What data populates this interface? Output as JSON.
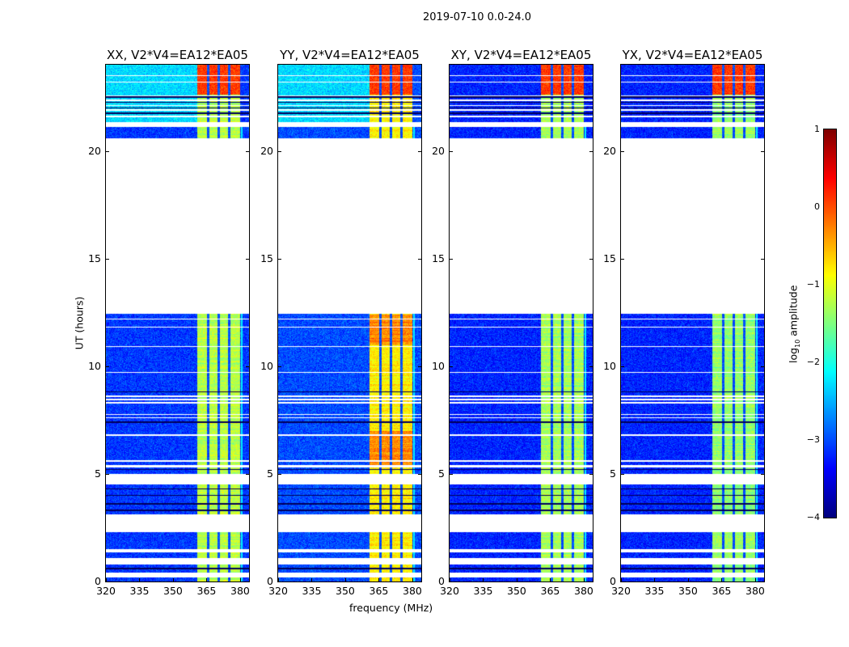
{
  "chart_data": {
    "type": "heatmap",
    "title": "2019-07-10 0.0-24.0",
    "xlabel": "frequency (MHz)",
    "ylabel": "UT (hours)",
    "xlim": [
      320,
      384
    ],
    "ylim": [
      0,
      24
    ],
    "xticks": [
      320,
      335,
      350,
      365,
      380
    ],
    "yticks": [
      0,
      5,
      10,
      15,
      20
    ],
    "panels": [
      {
        "title": "XX, V2*V4=EA12*EA05",
        "pol": "XX",
        "base_level": -3.1,
        "top_level": -2.3,
        "band_level": -1.2
      },
      {
        "title": "YY, V2*V4=EA12*EA05",
        "pol": "YY",
        "base_level": -3.0,
        "top_level": -2.3,
        "band_level": -0.8
      },
      {
        "title": "XY, V2*V4=EA12*EA05",
        "pol": "XY",
        "base_level": -3.2,
        "top_level": -3.2,
        "band_level": -1.3
      },
      {
        "title": "YX, V2*V4=EA12*EA05",
        "pol": "YX",
        "base_level": -3.2,
        "top_level": -3.2,
        "band_level": -1.4
      }
    ],
    "data_segments_hours": [
      [
        0.0,
        0.2
      ],
      [
        0.4,
        0.8
      ],
      [
        1.1,
        1.35
      ],
      [
        1.5,
        2.3
      ],
      [
        3.1,
        4.5
      ],
      [
        5.0,
        5.3
      ],
      [
        5.4,
        12.45
      ],
      [
        20.6,
        21.1
      ],
      [
        21.35,
        24.0
      ]
    ],
    "bright_band_mhz": [
      360.5,
      380.0
    ],
    "band_gaps_mhz": [
      365.5,
      370.3,
      375.0
    ],
    "colorbar": {
      "label": "log10 amplitude",
      "label_main": "log",
      "label_sub": "10",
      "label_rest": " amplitude",
      "range": [
        -4,
        1
      ],
      "ticks": [
        "1",
        "0",
        "−1",
        "−2",
        "−3",
        "−4"
      ],
      "colormap": "jet"
    }
  }
}
